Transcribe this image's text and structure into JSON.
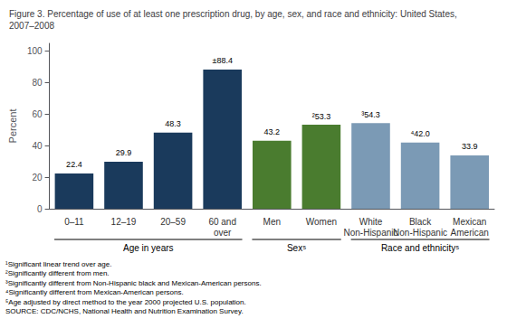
{
  "chart_data": {
    "type": "bar",
    "title": "Figure 3. Percentage of use of at least one prescription drug, by age, sex, and race and ethnicity: United States, 2007–2008",
    "ylabel": "Percent",
    "categories": [
      "0–11",
      "12–19",
      "20–59",
      "60 and\nover",
      "Men",
      "Women",
      "White\nNon-Hispanic",
      "Black\nNon-Hispanic",
      "Mexican\nAmerican"
    ],
    "values": [
      22.4,
      29.9,
      48.3,
      88.4,
      43.2,
      53.3,
      54.3,
      42.0,
      33.9
    ],
    "value_labels": [
      "22.4",
      "29.9",
      "48.3",
      "±88.4",
      "43.2",
      "²53.3",
      "³54.3",
      "⁴42.0",
      "33.9"
    ],
    "data_labels": true,
    "colors": [
      "#1a3a5c",
      "#1a3a5c",
      "#1a3a5c",
      "#1a3a5c",
      "#4a7c2f",
      "#4a7c2f",
      "#7b9ab5",
      "#7b9ab5",
      "#7b9ab5"
    ],
    "groups": [
      {
        "label": "Age in years",
        "categories": [
          "0–11",
          "12–19",
          "20–59",
          "60 and\nover"
        ]
      },
      {
        "label": "Sex⁵",
        "categories": [
          "Men",
          "Women"
        ]
      },
      {
        "label": "Race and ethnicity⁵",
        "categories": [
          "White\nNon-Hispanic",
          "Black\nNon-Hispanic",
          "Mexican\nAmerican"
        ]
      }
    ],
    "footnotes": "¹Significant linear trend over age.\n²Significantly different from men.\n³Significantly different from Non-Hispanic black and Mexican-American persons.\n⁴Significantly different from Mexican-American persons.\n⁵Age adjusted by direct method to the year 2000 projected U.S. population.\nSOURCE: CDC/NCHS, National Health and Nutrition Examination Survey.",
    "ylim": [
      0,
      105
    ],
    "yticks": [
      0,
      20,
      40,
      60,
      80,
      100
    ],
    "grid": false
  }
}
